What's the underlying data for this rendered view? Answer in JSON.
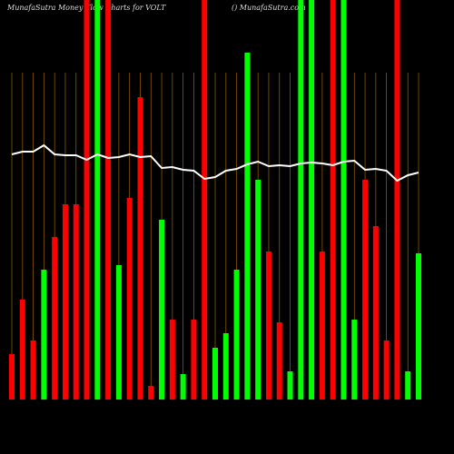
{
  "chart_data": {
    "type": "bar",
    "title": "MunafaSutra  Money Flow Charts for VOLT",
    "subtitle": "() MunafaSutra.com",
    "categories": [
      null,
      null,
      null,
      null,
      null,
      null,
      null,
      null,
      null,
      null,
      null,
      null,
      null,
      null,
      null,
      null,
      null,
      null,
      null,
      null,
      null,
      null,
      null,
      null,
      null,
      null,
      null,
      null,
      null,
      null,
      null,
      null,
      null,
      null,
      null,
      null,
      null,
      null,
      null
    ],
    "ylim": [
      0,
      440
    ],
    "grid_color": "#8a5a00",
    "series": [
      {
        "type": "bar",
        "values": [
          50,
          110,
          65,
          143,
          179,
          215,
          215,
          440,
          440,
          440,
          148,
          222,
          333,
          15,
          198,
          88,
          28,
          88,
          440,
          57,
          73,
          143,
          382,
          242,
          163,
          85,
          31,
          440,
          440,
          163,
          440,
          440,
          88,
          242,
          191,
          65,
          440,
          31,
          161
        ],
        "colors": [
          "#ff0000",
          "#ff0000",
          "#ff0000",
          "#00ff00",
          "#ff0000",
          "#ff0000",
          "#ff0000",
          "#ff0000",
          "#00ff00",
          "#ff0000",
          "#00ff00",
          "#ff0000",
          "#ff0000",
          "#ff0000",
          "#00ff00",
          "#ff0000",
          "#00ff00",
          "#ff0000",
          "#ff0000",
          "#00ff00",
          "#00ff00",
          "#00ff00",
          "#00ff00",
          "#00ff00",
          "#ff0000",
          "#ff0000",
          "#00ff00",
          "#00ff00",
          "#00ff00",
          "#ff0000",
          "#ff0000",
          "#00ff00",
          "#00ff00",
          "#ff0000",
          "#ff0000",
          "#ff0000",
          "#ff0000",
          "#00ff00",
          "#00ff00"
        ]
      },
      {
        "type": "line",
        "color": "#ffffff",
        "values": [
          270,
          273,
          273,
          280,
          270,
          269,
          269,
          264,
          270,
          266,
          267,
          270,
          267,
          268,
          255,
          256,
          253,
          252,
          243,
          245,
          252,
          254,
          259,
          262,
          257,
          258,
          257,
          260,
          261,
          260,
          258,
          262,
          263,
          253,
          254,
          252,
          241,
          247,
          250
        ]
      }
    ]
  }
}
